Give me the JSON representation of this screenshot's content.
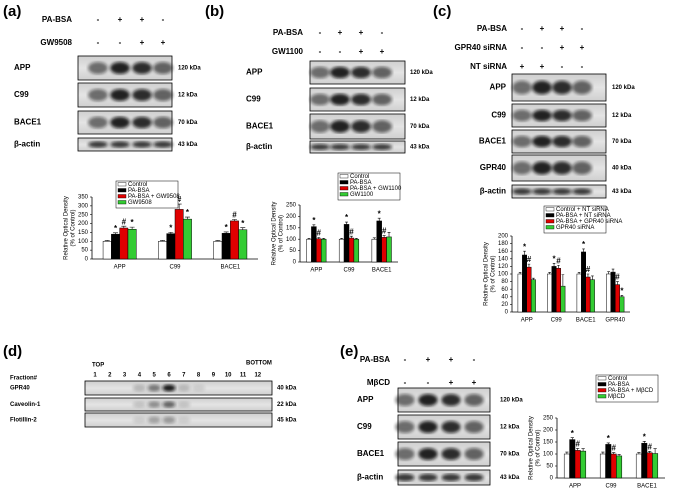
{
  "panels": [
    {
      "label": "(a)",
      "treatments": [
        {
          "name": "PA-BSA",
          "signs": [
            "-",
            "+",
            "+",
            "-"
          ]
        },
        {
          "name": "GW9508",
          "signs": [
            "-",
            "-",
            "+",
            "+"
          ]
        }
      ],
      "blots": [
        {
          "name": "APP",
          "size": "120 kDa"
        },
        {
          "name": "C99",
          "size": "12 kDa"
        },
        {
          "name": "BACE1",
          "size": "70 kDa"
        },
        {
          "name": "β-actin",
          "size": "43 kDa"
        }
      ]
    },
    {
      "label": "(b)",
      "treatments": [
        {
          "name": "PA-BSA",
          "signs": [
            "-",
            "+",
            "+",
            "-"
          ]
        },
        {
          "name": "GW1100",
          "signs": [
            "-",
            "-",
            "+",
            "+"
          ]
        }
      ],
      "blots": [
        {
          "name": "APP",
          "size": "120 kDa"
        },
        {
          "name": "C99",
          "size": "12 kDa"
        },
        {
          "name": "BACE1",
          "size": "70 kDa"
        },
        {
          "name": "β-actin",
          "size": "43 kDa"
        }
      ]
    },
    {
      "label": "(c)",
      "treatments": [
        {
          "name": "PA-BSA",
          "signs": [
            "-",
            "+",
            "+",
            "-"
          ]
        },
        {
          "name": "GPR40 siRNA",
          "signs": [
            "-",
            "-",
            "+",
            "+"
          ]
        },
        {
          "name": "NT siRNA",
          "signs": [
            "+",
            "+",
            "-",
            "-"
          ]
        }
      ],
      "blots": [
        {
          "name": "APP",
          "size": "120 kDa"
        },
        {
          "name": "C99",
          "size": "12 kDa"
        },
        {
          "name": "BACE1",
          "size": "70 kDa"
        },
        {
          "name": "GPR40",
          "size": "40 kDa"
        },
        {
          "name": "β-actin",
          "size": "43 kDa"
        }
      ]
    },
    {
      "label": "(d)",
      "fraction_label": "Fraction#",
      "top": "TOP",
      "bottom": "BOTTOM",
      "fractions": [
        "1",
        "2",
        "3",
        "4",
        "5",
        "6",
        "7",
        "8",
        "9",
        "10",
        "11",
        "12"
      ],
      "blots": [
        {
          "name": "GPR40",
          "size": "40 kDa"
        },
        {
          "name": "Caveolin-1",
          "size": "22 kDa"
        },
        {
          "name": "Flotillin-2",
          "size": "45 kDa"
        }
      ]
    },
    {
      "label": "(e)",
      "treatments": [
        {
          "name": "PA-BSA",
          "signs": [
            "-",
            "+",
            "+",
            "-"
          ]
        },
        {
          "name": "MβCD",
          "signs": [
            "-",
            "-",
            "+",
            "+"
          ]
        }
      ],
      "blots": [
        {
          "name": "APP",
          "size": "120 kDa"
        },
        {
          "name": "C99",
          "size": "12 kDa"
        },
        {
          "name": "BACE1",
          "size": "70 kDa"
        },
        {
          "name": "β-actin",
          "size": "43 kDa"
        }
      ]
    }
  ],
  "chart_data": [
    {
      "type": "bar",
      "ylabel": [
        "Relative Optical Density",
        "(% of Control)"
      ],
      "categories": [
        "APP",
        "C99",
        "BACE1"
      ],
      "ylim": [
        0,
        350
      ],
      "yticks": [
        0,
        50,
        100,
        150,
        200,
        250,
        300,
        350
      ],
      "series": [
        {
          "name": "Control",
          "color": "#ffffff",
          "values": [
            100,
            100,
            100
          ],
          "errors": [
            5,
            5,
            5
          ]
        },
        {
          "name": "PA-BSA",
          "color": "#000000",
          "values": [
            140,
            143,
            145
          ],
          "errors": [
            8,
            8,
            8
          ],
          "marks": [
            "*",
            "*",
            "*"
          ]
        },
        {
          "name": "PA-BSA + GW9508",
          "color": "#e00000",
          "values": [
            175,
            280,
            215
          ],
          "errors": [
            10,
            30,
            8
          ],
          "marks": [
            "#",
            "#",
            "#"
          ]
        },
        {
          "name": "GW9508",
          "color": "#33cc33",
          "values": [
            168,
            225,
            165
          ],
          "errors": [
            12,
            12,
            12
          ],
          "marks": [
            "*",
            "*",
            "*"
          ]
        }
      ]
    },
    {
      "type": "bar",
      "ylabel": [
        "Relative Optical Density",
        "(% of Control)"
      ],
      "categories": [
        "APP",
        "C99",
        "BACE1"
      ],
      "ylim": [
        0,
        250
      ],
      "yticks": [
        0,
        50,
        100,
        150,
        200,
        250
      ],
      "series": [
        {
          "name": "Control",
          "color": "#ffffff",
          "values": [
            100,
            100,
            100
          ],
          "errors": [
            4,
            4,
            6
          ]
        },
        {
          "name": "PA-BSA",
          "color": "#000000",
          "values": [
            155,
            165,
            180
          ],
          "errors": [
            8,
            10,
            12
          ],
          "marks": [
            "*",
            "*",
            "*"
          ]
        },
        {
          "name": "PA-BSA + GW1100",
          "color": "#e00000",
          "values": [
            102,
            105,
            108
          ],
          "errors": [
            6,
            8,
            8
          ],
          "marks": [
            "#",
            "#",
            "#"
          ]
        },
        {
          "name": "GW1100",
          "color": "#33cc33",
          "values": [
            100,
            100,
            110
          ],
          "errors": [
            4,
            4,
            20
          ]
        }
      ]
    },
    {
      "type": "bar",
      "ylabel": [
        "Relative Optical Density",
        "(% of Control)"
      ],
      "categories": [
        "APP",
        "C99",
        "BACE1",
        "GPR40"
      ],
      "ylim": [
        0,
        200
      ],
      "yticks": [
        0,
        20,
        40,
        60,
        80,
        100,
        120,
        140,
        160,
        180,
        200
      ],
      "series": [
        {
          "name": "Control + NT siRNA",
          "color": "#ffffff",
          "values": [
            100,
            100,
            100,
            100
          ],
          "errors": [
            4,
            4,
            4,
            6
          ]
        },
        {
          "name": "PA-BSA + NT siRNA",
          "color": "#000000",
          "values": [
            150,
            120,
            158,
            105
          ],
          "errors": [
            10,
            8,
            8,
            8
          ],
          "marks": [
            "*",
            "*",
            "*",
            null
          ]
        },
        {
          "name": "PA-BSA + GPR40 siRNA",
          "color": "#e00000",
          "values": [
            118,
            115,
            92,
            72
          ],
          "errors": [
            8,
            8,
            8,
            8
          ],
          "marks": [
            "#",
            "#",
            "#",
            "#"
          ]
        },
        {
          "name": "GPR40 siRNA",
          "color": "#33cc33",
          "values": [
            85,
            68,
            85,
            40
          ],
          "errors": [
            4,
            30,
            10,
            4
          ],
          "marks": [
            null,
            null,
            null,
            "*"
          ]
        }
      ]
    },
    {
      "type": "bar",
      "ylabel": [
        "Relative Optical Density",
        "(% of Control)"
      ],
      "categories": [
        "APP",
        "C99",
        "BACE1"
      ],
      "ylim": [
        0,
        250
      ],
      "yticks": [
        0,
        50,
        100,
        150,
        200,
        250
      ],
      "series": [
        {
          "name": "Control",
          "color": "#ffffff",
          "values": [
            100,
            100,
            100
          ],
          "errors": [
            8,
            8,
            6
          ]
        },
        {
          "name": "PA-BSA",
          "color": "#000000",
          "values": [
            160,
            140,
            145
          ],
          "errors": [
            8,
            6,
            8
          ],
          "marks": [
            "*",
            "*",
            "*"
          ]
        },
        {
          "name": "PA-BSA + MβCD",
          "color": "#e00000",
          "values": [
            115,
            100,
            105
          ],
          "errors": [
            8,
            6,
            6
          ],
          "marks": [
            "#",
            "#",
            "#"
          ]
        },
        {
          "name": "MβCD",
          "color": "#33cc33",
          "values": [
            112,
            92,
            102
          ],
          "errors": [
            10,
            6,
            20
          ]
        }
      ]
    }
  ]
}
